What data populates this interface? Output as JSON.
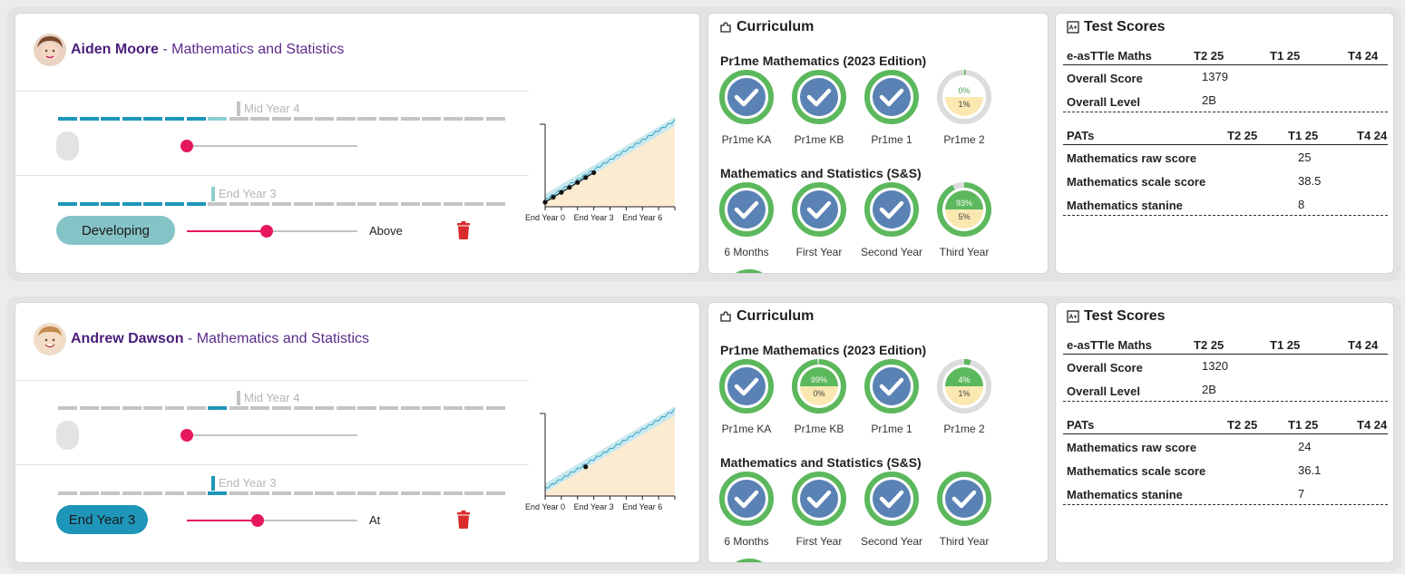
{
  "students": [
    {
      "name": "Aiden Moore",
      "subject": "Mathematics and Statistics",
      "separator": "-",
      "track1": {
        "marker_label": "Mid Year 4",
        "slider_value": 0.0
      },
      "track2": {
        "marker_label": "End Year 3",
        "pill": "Developing",
        "slider_value": 0.47,
        "slider_label": "Above"
      },
      "chart": {
        "x_ticks": [
          "End Year 0",
          "End Year 3",
          "End Year 6"
        ],
        "points": [
          0.0,
          0.5,
          1.0,
          1.5,
          2.0,
          2.5,
          3.0
        ]
      },
      "curriculum": {
        "title": "Curriculum",
        "group1": {
          "title": "Pr1me Mathematics (2023 Edition)",
          "items": [
            {
              "label": "Pr1me KA",
              "complete": true
            },
            {
              "label": "Pr1me KB",
              "complete": true
            },
            {
              "label": "Pr1me 1",
              "complete": true
            },
            {
              "label": "Pr1me 2",
              "complete": false,
              "top": "0%",
              "bottom": "1%"
            }
          ]
        },
        "group2": {
          "title": "Mathematics and Statistics (S&S)",
          "items": [
            {
              "label": "6 Months",
              "complete": true
            },
            {
              "label": "First Year",
              "complete": true
            },
            {
              "label": "Second Year",
              "complete": true
            },
            {
              "label": "Third Year",
              "complete": false,
              "top": "93%",
              "bottom": "5%"
            }
          ]
        }
      },
      "tests": {
        "title": "Test Scores",
        "easttle": {
          "heading": "e-asTTle Maths",
          "cols": [
            "T2 25",
            "T1 25",
            "T4 24"
          ],
          "rows": [
            {
              "label": "Overall Score",
              "value": "1379"
            },
            {
              "label": "Overall Level",
              "value": "2B"
            }
          ]
        },
        "pats": {
          "heading": "PATs",
          "cols": [
            "T2 25",
            "T1 25",
            "T4 24"
          ],
          "rows": [
            {
              "label": "Mathematics raw score",
              "value": "25"
            },
            {
              "label": "Mathematics scale score",
              "value": "38.5"
            },
            {
              "label": "Mathematics stanine",
              "value": "8"
            }
          ]
        }
      }
    },
    {
      "name": "Andrew Dawson",
      "subject": "Mathematics and Statistics",
      "separator": "-",
      "track1": {
        "marker_label": "Mid Year 4",
        "slider_value": 0.0
      },
      "track2": {
        "marker_label": "End Year 3",
        "pill": "End Year 3",
        "slider_value": 0.41,
        "slider_label": "At"
      },
      "chart": {
        "x_ticks": [
          "End Year 0",
          "End Year 3",
          "End Year 6"
        ],
        "points": [
          2.5
        ]
      },
      "curriculum": {
        "title": "Curriculum",
        "group1": {
          "title": "Pr1me Mathematics (2023 Edition)",
          "items": [
            {
              "label": "Pr1me KA",
              "complete": true
            },
            {
              "label": "Pr1me KB",
              "complete": false,
              "top": "99%",
              "bottom": "0%"
            },
            {
              "label": "Pr1me 1",
              "complete": true
            },
            {
              "label": "Pr1me 2",
              "complete": false,
              "top": "4%",
              "bottom": "1%"
            }
          ]
        },
        "group2": {
          "title": "Mathematics and Statistics (S&S)",
          "items": [
            {
              "label": "6 Months",
              "complete": true
            },
            {
              "label": "First Year",
              "complete": true
            },
            {
              "label": "Second Year",
              "complete": true
            },
            {
              "label": "Third Year",
              "complete": true
            }
          ]
        }
      },
      "tests": {
        "title": "Test Scores",
        "easttle": {
          "heading": "e-asTTle Maths",
          "cols": [
            "T2 25",
            "T1 25",
            "T4 24"
          ],
          "rows": [
            {
              "label": "Overall Score",
              "value": "1320"
            },
            {
              "label": "Overall Level",
              "value": "2B"
            }
          ]
        },
        "pats": {
          "heading": "PATs",
          "cols": [
            "T2 25",
            "T1 25",
            "T4 24"
          ],
          "rows": [
            {
              "label": "Mathematics raw score",
              "value": "24"
            },
            {
              "label": "Mathematics scale score",
              "value": "36.1"
            },
            {
              "label": "Mathematics stanine",
              "value": "7"
            }
          ]
        }
      }
    }
  ],
  "colors": {
    "brand_purple": "#5c2c8a",
    "dash_blue": "#1e96b9",
    "dash_light": "#8ccfd1",
    "dash_grey": "#c4c4c4",
    "pill_developing": "#84c3c6",
    "pill_at": "#1e96b9",
    "slider_pink": "#e5185f",
    "ring_green": "#5cb85c",
    "ring_blue": "#5a82b4",
    "ring_yellow": "#fbe8b1",
    "trash_red": "#d92b2b"
  }
}
